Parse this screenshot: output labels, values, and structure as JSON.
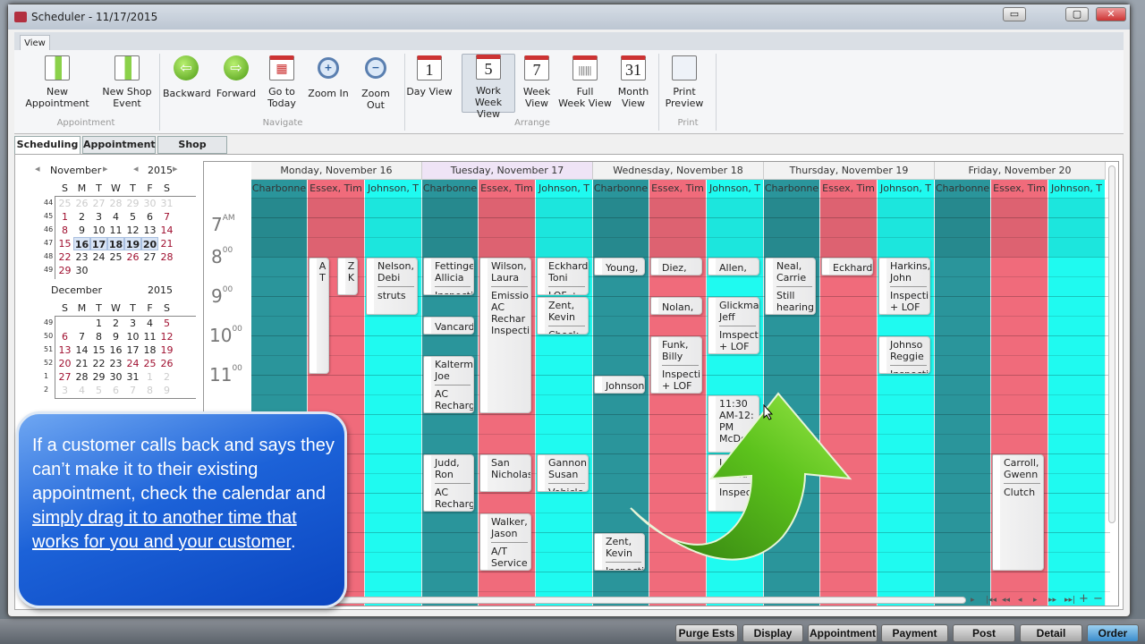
{
  "window": {
    "title": "Scheduler - 11/17/2015",
    "minimize": "▭",
    "restore": "▢",
    "close": "✕"
  },
  "ribbon": {
    "tab": "View",
    "buttons": [
      {
        "label": "New Appointment",
        "icon": "new-appointment-icon"
      },
      {
        "label": "New Shop\nEvent",
        "icon": "new-shop-event-icon"
      },
      {
        "label": "Backward",
        "icon": "arrow-left-icon",
        "glyph": "⇦"
      },
      {
        "label": "Forward",
        "icon": "arrow-right-icon",
        "glyph": "⇨"
      },
      {
        "label": "Go to\nToday",
        "icon": "calendar-today-icon"
      },
      {
        "label": "Zoom In",
        "icon": "zoom-in-icon",
        "glyph": "+"
      },
      {
        "label": "Zoom Out",
        "icon": "zoom-out-icon",
        "glyph": "−"
      },
      {
        "label": "Day View",
        "icon": "calendar-1-icon",
        "glyph": "1"
      },
      {
        "label": "Work\nWeek View",
        "icon": "calendar-5-icon",
        "glyph": "5",
        "selected": true
      },
      {
        "label": "Week\nView",
        "icon": "calendar-7-icon",
        "glyph": "7"
      },
      {
        "label": "Full\nWeek View",
        "icon": "calendar-full-week-icon",
        "glyph": "|||"
      },
      {
        "label": "Month\nView",
        "icon": "calendar-31-icon",
        "glyph": "31"
      },
      {
        "label": "Print\nPreview",
        "icon": "print-preview-icon"
      }
    ],
    "groups": [
      "Appointment",
      "Navigate",
      "Arrange",
      "Print"
    ]
  },
  "subtabs": [
    "Scheduling",
    "Appointment",
    "Shop Events"
  ],
  "mini_calendar": {
    "prev": "◂",
    "next": "▸",
    "months": [
      {
        "name": "November",
        "year": "2015",
        "weeks": [
          "44",
          "45",
          "46",
          "47",
          "48",
          "49"
        ],
        "days": [
          [
            "25",
            "26",
            "27",
            "28",
            "29",
            "30",
            "31"
          ],
          [
            "1",
            "2",
            "3",
            "4",
            "5",
            "6",
            "7"
          ],
          [
            "8",
            "9",
            "10",
            "11",
            "12",
            "13",
            "14"
          ],
          [
            "15",
            "16",
            "17",
            "18",
            "19",
            "20",
            "21"
          ],
          [
            "22",
            "23",
            "24",
            "25",
            "26",
            "27",
            "28"
          ],
          [
            "29",
            "30",
            "",
            "",
            "",
            "",
            ""
          ]
        ]
      },
      {
        "name": "December",
        "year": "2015",
        "weeks": [
          "49",
          "50",
          "51",
          "52",
          "1",
          "2"
        ],
        "days": [
          [
            "",
            "",
            "1",
            "2",
            "3",
            "4",
            "5"
          ],
          [
            "6",
            "7",
            "8",
            "9",
            "10",
            "11",
            "12"
          ],
          [
            "13",
            "14",
            "15",
            "16",
            "17",
            "18",
            "19"
          ],
          [
            "20",
            "21",
            "22",
            "23",
            "24",
            "25",
            "26"
          ],
          [
            "27",
            "28",
            "29",
            "30",
            "31",
            "1",
            "2"
          ],
          [
            "3",
            "4",
            "5",
            "6",
            "7",
            "8",
            "9"
          ]
        ]
      }
    ],
    "dow": [
      "S",
      "M",
      "T",
      "W",
      "T",
      "F",
      "S"
    ],
    "selected_range": [
      "16",
      "17",
      "18",
      "19",
      "20"
    ]
  },
  "scheduler": {
    "days": [
      "Monday, November 16",
      "Tuesday, November 17",
      "Wednesday, November 18",
      "Thursday, November 19",
      "Friday, November 20"
    ],
    "today_index": 1,
    "resources": [
      {
        "name": "Charbonne",
        "color": "#2a959b"
      },
      {
        "name": "Essex, Tim",
        "color": "#f06b7b"
      },
      {
        "name": "Johnson, T",
        "color": "#1ffaf0"
      }
    ],
    "time_labels": [
      {
        "h": "7",
        "ap": "AM"
      },
      {
        "h": "8",
        "ap": "00"
      },
      {
        "h": "9",
        "ap": "00"
      },
      {
        "h": "10",
        "ap": "00"
      },
      {
        "h": "11",
        "ap": "00"
      }
    ],
    "appointments": [
      {
        "day": 0,
        "res": 1,
        "start": "8:00",
        "end": "11:00",
        "title": "A\nT",
        "desc": "",
        "slot": 0,
        "narrow": true
      },
      {
        "day": 0,
        "res": 1,
        "start": "8:00",
        "end": "9:00",
        "title": "Z\nK",
        "desc": "",
        "slot": 1,
        "narrow": true
      },
      {
        "day": 0,
        "res": 2,
        "start": "8:00",
        "end": "9:30",
        "title": "Nelson,\nDebi",
        "desc": "struts"
      },
      {
        "day": 1,
        "res": 0,
        "start": "8:00",
        "end": "9:00",
        "title": "Fettinge\nAllicia",
        "desc": "Inspecti"
      },
      {
        "day": 1,
        "res": 0,
        "start": "9:30",
        "end": "10:00",
        "title": "Vancard",
        "desc": ""
      },
      {
        "day": 1,
        "res": 0,
        "start": "10:30",
        "end": "12:00",
        "title": "Kalterm\nJoe",
        "desc": "AC\nRecharg"
      },
      {
        "day": 1,
        "res": 0,
        "start": "13:00",
        "end": "14:30",
        "title": "Judd,\nRon",
        "desc": "AC\nRecharg"
      },
      {
        "day": 1,
        "res": 1,
        "start": "8:00",
        "end": "12:00",
        "title": "Wilson,\nLaura",
        "desc": "Emissio\nAC\nRechar\nInspecti"
      },
      {
        "day": 1,
        "res": 1,
        "start": "13:00",
        "end": "14:00",
        "title": "San\nNicholas",
        "desc": ""
      },
      {
        "day": 1,
        "res": 1,
        "start": "14:30",
        "end": "16:00",
        "title": "Walker,\nJason",
        "desc": "A/T\nService"
      },
      {
        "day": 1,
        "res": 2,
        "start": "8:00",
        "end": "9:00",
        "title": "Eckhard\nToni",
        "desc": "LOF +"
      },
      {
        "day": 1,
        "res": 2,
        "start": "9:00",
        "end": "10:00",
        "title": "Zent,\nKevin",
        "desc": "Check"
      },
      {
        "day": 1,
        "res": 2,
        "start": "13:00",
        "end": "14:00",
        "title": "Gannon\nSusan",
        "desc": "Vehicle"
      },
      {
        "day": 2,
        "res": 0,
        "start": "8:00",
        "end": "8:30",
        "title": "Young,",
        "desc": ""
      },
      {
        "day": 2,
        "res": 0,
        "start": "11:00",
        "end": "11:30",
        "title": "Johnson",
        "desc": ""
      },
      {
        "day": 2,
        "res": 0,
        "start": "15:00",
        "end": "16:00",
        "title": "Zent,\nKevin",
        "desc": "Inspecti"
      },
      {
        "day": 2,
        "res": 1,
        "start": "8:00",
        "end": "8:30",
        "title": "Diez,",
        "desc": ""
      },
      {
        "day": 2,
        "res": 1,
        "start": "9:00",
        "end": "9:30",
        "title": "Nolan,",
        "desc": ""
      },
      {
        "day": 2,
        "res": 1,
        "start": "10:00",
        "end": "11:30",
        "title": "Funk,\nBilly",
        "desc": "Inspecti\n+ LOF"
      },
      {
        "day": 2,
        "res": 2,
        "start": "8:00",
        "end": "8:30",
        "title": "Allen,",
        "desc": ""
      },
      {
        "day": 2,
        "res": 2,
        "start": "9:00",
        "end": "10:30",
        "title": "Glickma\nJeff",
        "desc": "Imspect\n+ LOF"
      },
      {
        "day": 2,
        "res": 2,
        "start": "11:30",
        "end": "13:00",
        "title": "11:30\nAM-12:\nPM\nMcDonn",
        "desc": ""
      },
      {
        "day": 2,
        "res": 2,
        "start": "13:00",
        "end": "14:30",
        "title": "Le...\nDavid",
        "desc": "Inspect"
      },
      {
        "day": 3,
        "res": 0,
        "start": "8:00",
        "end": "9:30",
        "title": "Neal,\nCarrie",
        "desc": "Still\nhearing"
      },
      {
        "day": 3,
        "res": 1,
        "start": "8:00",
        "end": "8:30",
        "title": "Eckhard",
        "desc": ""
      },
      {
        "day": 3,
        "res": 2,
        "start": "8:00",
        "end": "9:30",
        "title": "Harkins,\nJohn",
        "desc": "Inspecti\n+ LOF"
      },
      {
        "day": 3,
        "res": 2,
        "start": "10:00",
        "end": "11:00",
        "title": "Johnso\nReggie",
        "desc": "Inspecti"
      },
      {
        "day": 4,
        "res": 1,
        "start": "13:00",
        "end": "16:00",
        "title": "Carroll,\nGwenn",
        "desc": "Clutch"
      }
    ]
  },
  "nav_buttons": [
    "▸",
    "|◂◂",
    "◂◂",
    "◂",
    "▸",
    "▸▸",
    "▸▸|",
    "+",
    "−"
  ],
  "callout": {
    "text_plain": "If a customer calls back and says they can’t make it to their existing appointment, check the calendar and ",
    "text_link": "simply drag it to another time that works for you and your customer",
    "text_end": "."
  },
  "taskbar": [
    "Purge Ests",
    "Display",
    "Appointment",
    "Payment",
    "Post",
    "Detail",
    "Order"
  ],
  "colors": {
    "charbonne": "#2a959b",
    "essex": "#f06b7b",
    "johnson": "#1ffaf0",
    "callout": "#1c62d8",
    "arrow": "#5cc21c"
  }
}
